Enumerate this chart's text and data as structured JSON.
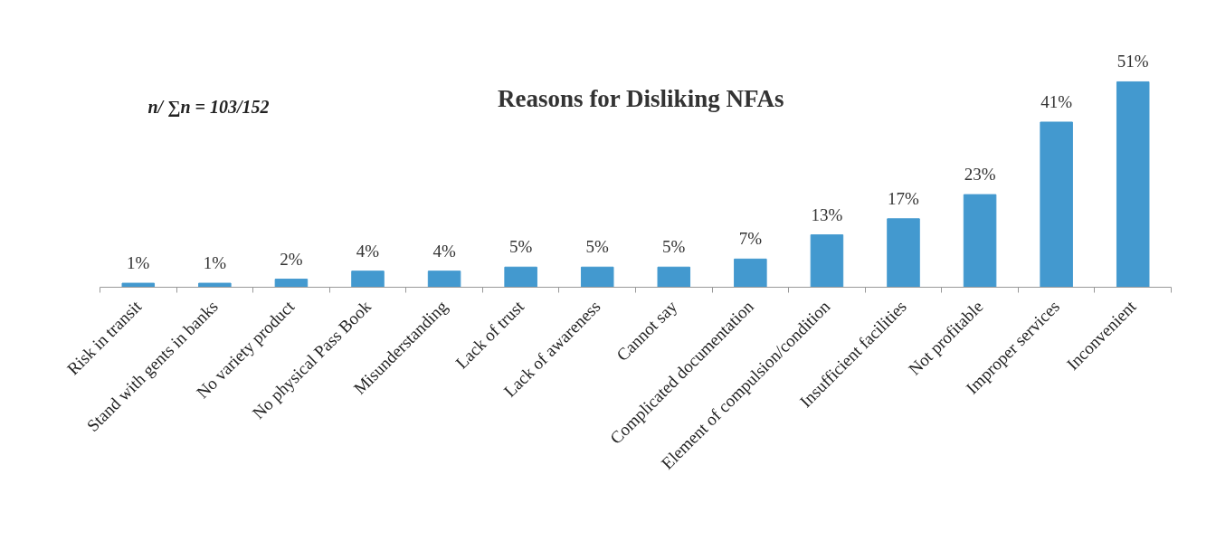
{
  "chart_data": {
    "type": "bar",
    "title": "Reasons for Disliking NFAs",
    "annotations": [
      "n/ ∑n  = 103/152"
    ],
    "categories": [
      "Risk in transit",
      "Stand with gents in banks",
      "No variety product",
      "No physical Pass Book",
      "Misunderstanding",
      "Lack of trust",
      "Lack of awareness",
      "Cannot say",
      "Complicated documentation",
      "Element of compulsion/condition",
      "Insufficient facilities",
      "Not profitable",
      "Improper services",
      "Inconvenient"
    ],
    "values": [
      1,
      1,
      2,
      4,
      4,
      5,
      5,
      5,
      7,
      13,
      17,
      23,
      41,
      51
    ],
    "value_labels": [
      "1%",
      "1%",
      "2%",
      "4%",
      "4%",
      "5%",
      "5%",
      "5%",
      "7%",
      "13%",
      "17%",
      "23%",
      "41%",
      "51%"
    ],
    "color": "#4399cf",
    "grid": false
  }
}
